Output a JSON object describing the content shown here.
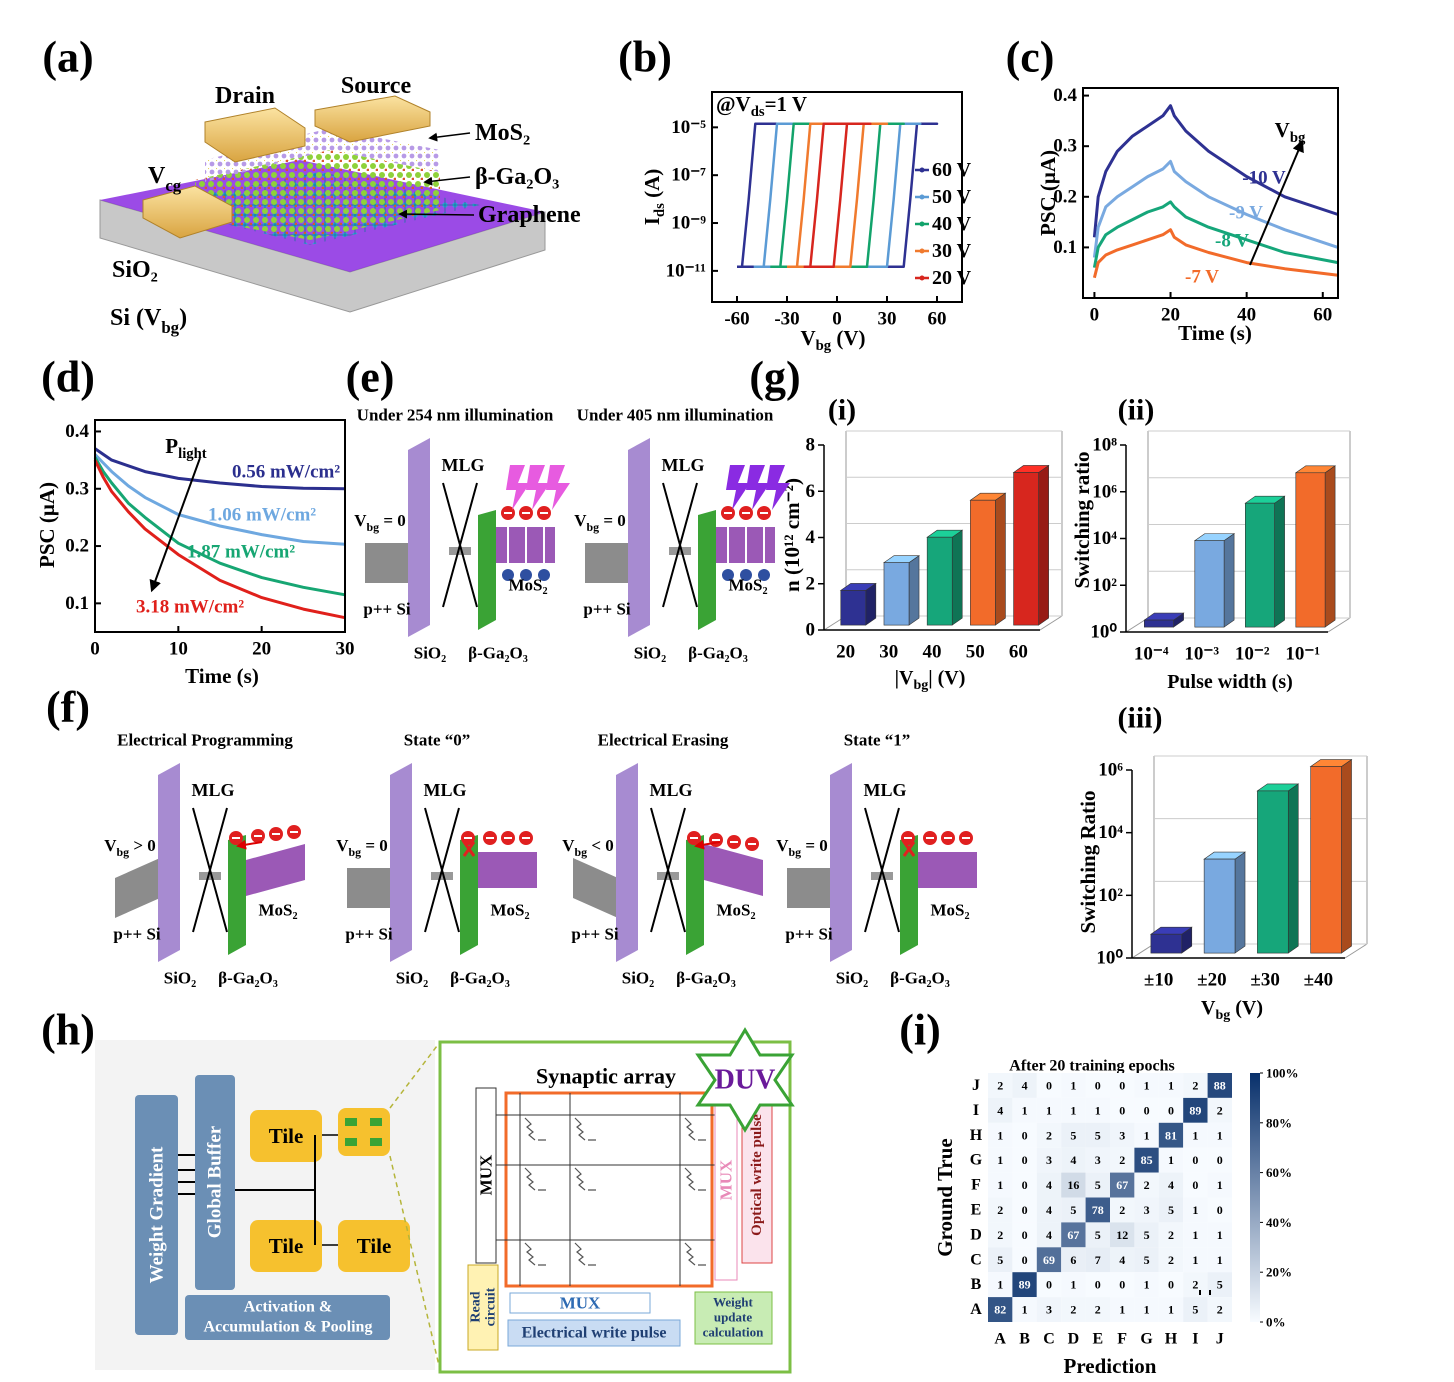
{
  "labels": [
    "(a)",
    "(b)",
    "(c)",
    "(d)",
    "(e)",
    "(f)",
    "(g)",
    "(h)",
    "(i)"
  ],
  "a": {
    "drain": "Drain",
    "source": "Source",
    "mos2": "MoS₂",
    "ga2o3": "β-Ga₂O₃",
    "graphene": "Graphene",
    "vcg": [
      "V",
      "cg"
    ],
    "sio2": "SiO₂",
    "si": [
      "Si (V",
      "bg",
      ")"
    ]
  },
  "chart_data": [
    {
      "type": "line",
      "annotation": [
        "@V",
        "ds",
        "=1 V"
      ],
      "xlabel": [
        "V",
        "bg",
        " (V)"
      ],
      "ylabel": [
        "I",
        "ds",
        " (A)"
      ],
      "xlim": [
        -75,
        75
      ],
      "xticks": [
        -60,
        -30,
        0,
        30,
        60
      ],
      "ylog": true,
      "ylim": [
        5e-13,
        0.0003
      ],
      "yticks": [
        {
          "value": 1e-11,
          "label": "10⁻¹¹"
        },
        {
          "value": 1e-09,
          "label": "10⁻⁹"
        },
        {
          "value": 1e-07,
          "label": "10⁻⁷"
        },
        {
          "value": 1e-05,
          "label": "10⁻⁵"
        }
      ],
      "legend": "right",
      "series": [
        {
          "name": "60 V",
          "color": "#2e3192",
          "x": [
            -60,
            -57,
            -53,
            -49,
            60,
            48,
            44,
            40,
            -60
          ],
          "values": [
            1.5e-11,
            1.5e-11,
            1e-08,
            1.4e-05,
            1.4e-05,
            1.4e-05,
            1e-08,
            1.5e-11,
            1.5e-11
          ]
        },
        {
          "name": "50 V",
          "color": "#5b9bd5",
          "x": [
            -50,
            -44,
            -40,
            -36,
            50,
            38,
            34,
            30,
            -50
          ],
          "values": [
            1.5e-11,
            1.5e-11,
            1e-08,
            1.4e-05,
            1.4e-05,
            1.4e-05,
            1e-08,
            1.5e-11,
            1.5e-11
          ]
        },
        {
          "name": "40 V",
          "color": "#12a36b",
          "x": [
            -40,
            -34,
            -30,
            -26,
            40,
            26,
            22,
            18,
            -40
          ],
          "values": [
            1.5e-11,
            1.5e-11,
            1e-08,
            1.4e-05,
            1.4e-05,
            1.4e-05,
            1e-08,
            1.5e-11,
            1.5e-11
          ]
        },
        {
          "name": "30 V",
          "color": "#f07a2e",
          "x": [
            -30,
            -24,
            -20,
            -16,
            30,
            16,
            12,
            8,
            -30
          ],
          "values": [
            1.5e-11,
            1.5e-11,
            1e-08,
            1.4e-05,
            1.4e-05,
            1.4e-05,
            1e-08,
            1.5e-11,
            1.5e-11
          ]
        },
        {
          "name": "20 V",
          "color": "#d7261e",
          "x": [
            -20,
            -16,
            -12,
            -8,
            20,
            6,
            2,
            -2,
            -20
          ],
          "values": [
            1.5e-11,
            1.5e-11,
            1e-08,
            1.4e-05,
            1.4e-05,
            1.4e-05,
            1e-08,
            1.5e-11,
            1.5e-11
          ]
        }
      ]
    },
    {
      "type": "line",
      "annotation": [
        "V",
        "bg"
      ],
      "xlabel": "Time (s)",
      "ylabel": "PSC (μA)",
      "xlim": [
        -3,
        64
      ],
      "xticks": [
        0,
        20,
        40,
        60
      ],
      "ylim": [
        0,
        0.415
      ],
      "yticks": [
        0.1,
        0.2,
        0.3,
        0.4
      ],
      "x": [
        0,
        1,
        3,
        6,
        10,
        14,
        18,
        20,
        21,
        24,
        30,
        40,
        50,
        64
      ],
      "series": [
        {
          "name": "-10 V",
          "color": "#2e3192",
          "values": [
            0.12,
            0.2,
            0.25,
            0.29,
            0.32,
            0.34,
            0.36,
            0.38,
            0.36,
            0.33,
            0.29,
            0.24,
            0.2,
            0.165
          ]
        },
        {
          "name": "-9 V",
          "color": "#79a9e0",
          "values": [
            0.08,
            0.14,
            0.18,
            0.2,
            0.22,
            0.24,
            0.255,
            0.27,
            0.25,
            0.23,
            0.2,
            0.165,
            0.135,
            0.1
          ]
        },
        {
          "name": "-8 V",
          "color": "#16a67a",
          "values": [
            0.06,
            0.1,
            0.125,
            0.14,
            0.155,
            0.17,
            0.18,
            0.19,
            0.18,
            0.16,
            0.14,
            0.115,
            0.09,
            0.07
          ]
        },
        {
          "name": "-7 V",
          "color": "#f26b2a",
          "values": [
            0.04,
            0.07,
            0.085,
            0.095,
            0.105,
            0.115,
            0.125,
            0.135,
            0.12,
            0.105,
            0.09,
            0.07,
            0.058,
            0.045
          ]
        }
      ]
    },
    {
      "type": "line",
      "annotation": [
        "P",
        "light"
      ],
      "xlabel": "Time (s)",
      "ylabel": "PSC (μA)",
      "xlim": [
        0,
        30
      ],
      "xticks": [
        0,
        10,
        20,
        30
      ],
      "ylim": [
        0.05,
        0.42
      ],
      "yticks": [
        0.1,
        0.2,
        0.3,
        0.4
      ],
      "x": [
        0,
        1,
        2,
        4,
        6,
        10,
        15,
        20,
        25,
        30
      ],
      "series": [
        {
          "name": "0.56 mW/cm²",
          "color": "#2b2f8e",
          "values": [
            0.37,
            0.36,
            0.35,
            0.34,
            0.33,
            0.318,
            0.31,
            0.304,
            0.301,
            0.3
          ]
        },
        {
          "name": "1.06 mW/cm²",
          "color": "#6ea8e0",
          "values": [
            0.36,
            0.345,
            0.33,
            0.305,
            0.285,
            0.255,
            0.235,
            0.22,
            0.208,
            0.203
          ]
        },
        {
          "name": "1.87 mW/cm²",
          "color": "#17a673",
          "values": [
            0.355,
            0.33,
            0.31,
            0.275,
            0.25,
            0.205,
            0.17,
            0.145,
            0.128,
            0.115
          ]
        },
        {
          "name": "3.18 mW/cm²",
          "color": "#e0201b",
          "values": [
            0.35,
            0.32,
            0.295,
            0.26,
            0.23,
            0.185,
            0.14,
            0.11,
            0.09,
            0.075
          ]
        }
      ]
    },
    {
      "type": "bar",
      "label": "(i)",
      "ylabel": "n (10¹² cm⁻²)",
      "xlabel": [
        "|V",
        "bg",
        "| (V)"
      ],
      "categories": [
        "20",
        "30",
        "40",
        "50",
        "60"
      ],
      "values": [
        1.5,
        2.7,
        3.8,
        5.4,
        6.6
      ],
      "colors": [
        "#2e3192",
        "#79a9e0",
        "#16a67a",
        "#f26b2a",
        "#d7261e"
      ],
      "ylim": [
        0,
        8
      ],
      "yticks": [
        0,
        2,
        4,
        6,
        8
      ]
    },
    {
      "type": "bar",
      "label": "(ii)",
      "ylabel": "Switching ratio",
      "xlabel": "Pulse width (s)",
      "categories": [
        "10⁻⁴",
        "10⁻³",
        "10⁻²",
        "10⁻¹"
      ],
      "values": [
        2,
        5000,
        200000,
        4000000
      ],
      "colors": [
        "#2e3192",
        "#79a9e0",
        "#16a67a",
        "#f26b2a"
      ],
      "ylog": true,
      "ylim": [
        1,
        100000000
      ],
      "yticks": [
        {
          "value": 1,
          "label": "10⁰"
        },
        {
          "value": 100,
          "label": "10²"
        },
        {
          "value": 10000,
          "label": "10⁴"
        },
        {
          "value": 1000000,
          "label": "10⁶"
        },
        {
          "value": 100000000,
          "label": "10⁸"
        }
      ]
    },
    {
      "type": "bar",
      "label": "(iii)",
      "ylabel": "Switching Ratio",
      "xlabel": [
        "V",
        "bg",
        " (V)"
      ],
      "categories": [
        "±10",
        "±20",
        "±30",
        "±40"
      ],
      "values": [
        4,
        1000,
        150000,
        900000
      ],
      "colors": [
        "#2e3192",
        "#79a9e0",
        "#16a67a",
        "#f26b2a"
      ],
      "ylog": true,
      "ylim": [
        1,
        1000000
      ],
      "yticks": [
        {
          "value": 1,
          "label": "10⁰"
        },
        {
          "value": 100,
          "label": "10²"
        },
        {
          "value": 10000,
          "label": "10⁴"
        },
        {
          "value": 1000000,
          "label": "10⁶"
        }
      ]
    },
    {
      "type": "heatmap",
      "title": "After 20 training epochs",
      "xlabel": "Prediction",
      "ylabel": "Ground True",
      "categories": [
        "A",
        "B",
        "C",
        "D",
        "E",
        "F",
        "G",
        "H",
        "I",
        "J"
      ],
      "rows": [
        "J",
        "I",
        "H",
        "G",
        "F",
        "E",
        "D",
        "C",
        "B",
        "A"
      ],
      "values": [
        [
          2,
          4,
          0,
          1,
          0,
          0,
          1,
          1,
          2,
          88
        ],
        [
          4,
          1,
          1,
          1,
          1,
          0,
          0,
          0,
          89,
          2
        ],
        [
          1,
          0,
          2,
          5,
          5,
          3,
          1,
          81,
          1,
          1
        ],
        [
          1,
          0,
          3,
          4,
          3,
          2,
          85,
          1,
          0,
          0
        ],
        [
          1,
          0,
          4,
          16,
          5,
          67,
          2,
          4,
          0,
          1
        ],
        [
          2,
          0,
          4,
          5,
          78,
          2,
          3,
          5,
          1,
          0
        ],
        [
          2,
          0,
          4,
          67,
          5,
          12,
          5,
          2,
          1,
          1
        ],
        [
          5,
          0,
          69,
          6,
          7,
          4,
          5,
          2,
          1,
          1
        ],
        [
          1,
          89,
          0,
          1,
          0,
          0,
          1,
          0,
          2,
          5
        ],
        [
          82,
          1,
          3,
          2,
          2,
          1,
          1,
          1,
          5,
          2
        ]
      ],
      "color": "#08306b",
      "zlim": [
        0,
        100
      ],
      "zticks": [
        {
          "value": 0,
          "label": "0%"
        },
        {
          "value": 20,
          "label": "20%"
        },
        {
          "value": 40,
          "label": "40%"
        },
        {
          "value": 60,
          "label": "60%"
        },
        {
          "value": 80,
          "label": "80%"
        },
        {
          "value": 100,
          "label": "100%"
        }
      ]
    }
  ],
  "e": {
    "panels": [
      {
        "title": "Under 254 nm illumination",
        "mlg": "MLG",
        "vbg": [
          "V",
          "bg",
          " = 0"
        ],
        "si": "p++ Si",
        "sio2": "SiO₂",
        "ga2o3": "β-Ga₂O₃",
        "mos2": "MoS₂"
      },
      {
        "title": "Under 405 nm illumination",
        "mlg": "MLG",
        "vbg": [
          "V",
          "bg",
          " = 0"
        ],
        "si": "p++ Si",
        "sio2": "SiO₂",
        "ga2o3": "β-Ga₂O₃",
        "mos2": "MoS₂"
      }
    ]
  },
  "f": {
    "panels": [
      {
        "title": "Electrical Programming",
        "mlg": "MLG",
        "vbg": [
          "V",
          "bg",
          " > 0"
        ],
        "si": "p++ Si",
        "sio2": "SiO₂",
        "ga2o3": "β-Ga₂O₃",
        "mos2": "MoS₂"
      },
      {
        "title": "State “0”",
        "mlg": "MLG",
        "vbg": [
          "V",
          "bg",
          " = 0"
        ],
        "si": "p++ Si",
        "sio2": "SiO₂",
        "ga2o3": "β-Ga₂O₃",
        "mos2": "MoS₂"
      },
      {
        "title": "Electrical Erasing",
        "mlg": "MLG",
        "vbg": [
          "V",
          "bg",
          " < 0"
        ],
        "si": "p++ Si",
        "sio2": "SiO₂",
        "ga2o3": "β-Ga₂O₃",
        "mos2": "MoS₂"
      },
      {
        "title": "State “1”",
        "mlg": "MLG",
        "vbg": [
          "V",
          "bg",
          " = 0"
        ],
        "si": "p++ Si",
        "sio2": "SiO₂",
        "ga2o3": "β-Ga₂O₃",
        "mos2": "MoS₂"
      }
    ]
  },
  "h": {
    "weight_gradient": "Weight Gradient",
    "global_buffer": "Global Buffer",
    "tiles": [
      "Tile",
      "Tile",
      "Tile",
      "Tile"
    ],
    "activation_1": "Activation &",
    "activation_2": "Accumulation & Pooling",
    "synaptic_array": "Synaptic array",
    "duv": "DUV",
    "mux_left": "MUX",
    "mux_right": "MUX",
    "optical": "Optical write pulse",
    "mux_bottom": "MUX",
    "electrical": "Electrical write pulse",
    "read_1": "Read",
    "read_2": "circuit",
    "weight_update_1": "Weight",
    "weight_update_2": "update",
    "weight_update_3": "calculation"
  }
}
